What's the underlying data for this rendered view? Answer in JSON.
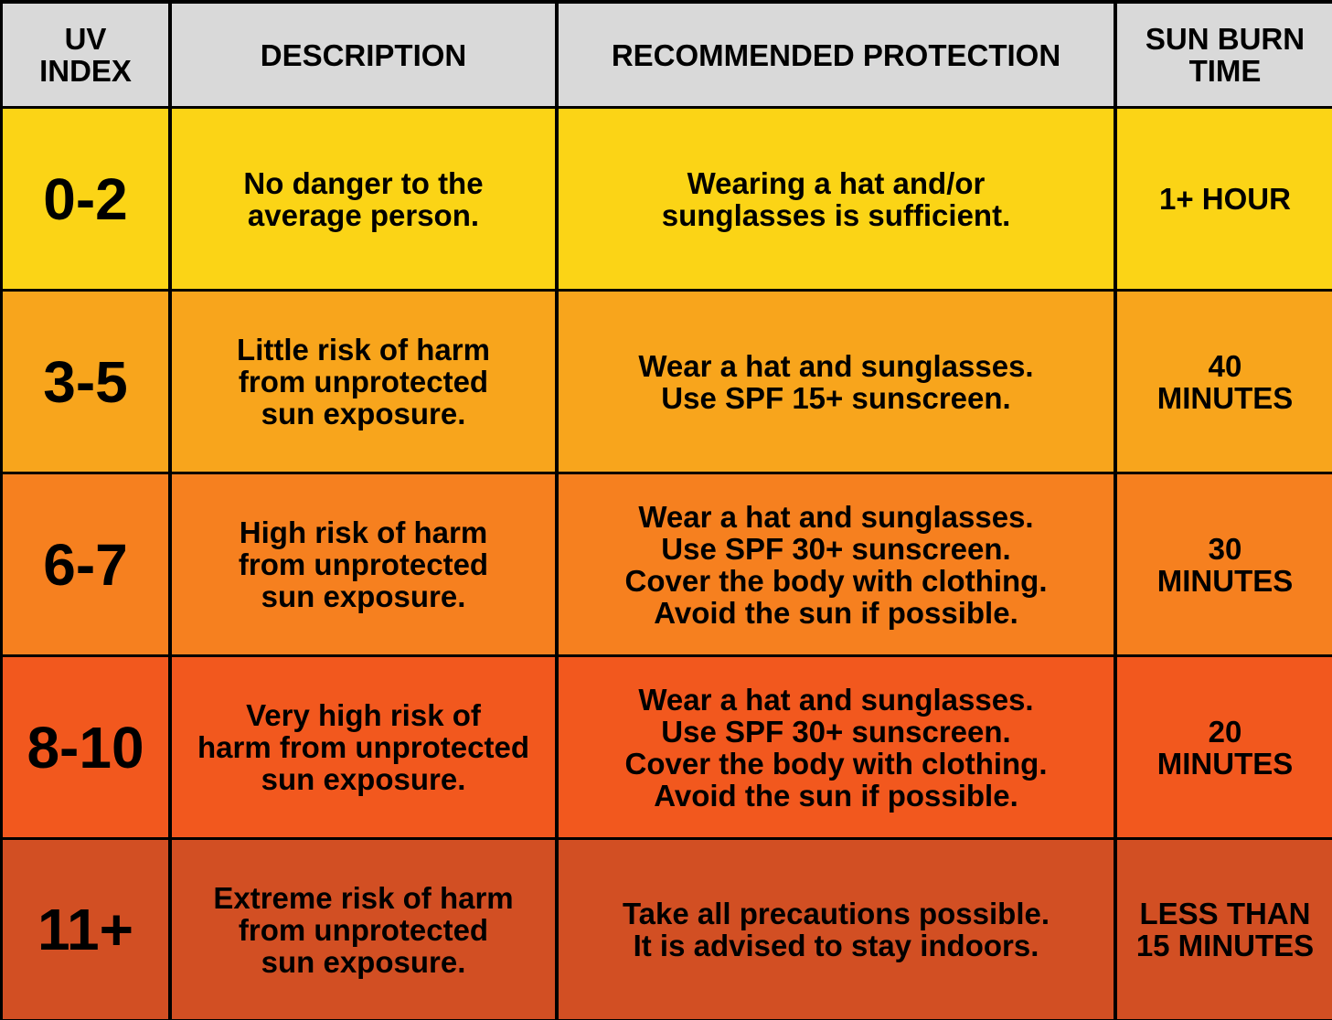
{
  "chart_data": {
    "type": "table",
    "columns": [
      "UV\nINDEX",
      "DESCRIPTION",
      "RECOMMENDED PROTECTION",
      "SUN BURN\nTIME"
    ],
    "rows": [
      {
        "uv_index": "0-2",
        "description": "No danger to the\naverage person.",
        "protection": "Wearing a hat and/or\nsunglasses is sufficient.",
        "burn_time": "1+ HOUR",
        "color": "#fbd416"
      },
      {
        "uv_index": "3-5",
        "description": "Little risk of harm\nfrom unprotected\nsun exposure.",
        "protection": "Wear a hat and sunglasses.\nUse SPF 15+ sunscreen.",
        "burn_time": "40\nMINUTES",
        "color": "#f8a51c"
      },
      {
        "uv_index": "6-7",
        "description": "High risk of harm\nfrom unprotected\nsun exposure.",
        "protection": "Wear a hat and sunglasses.\nUse SPF 30+ sunscreen.\nCover the body with clothing.\nAvoid the sun if possible.",
        "burn_time": "30\nMINUTES",
        "color": "#f6801f"
      },
      {
        "uv_index": "8-10",
        "description": "Very high risk of\nharm from unprotected\nsun exposure.",
        "protection": "Wear a hat and sunglasses.\nUse SPF 30+ sunscreen.\nCover the body with clothing.\nAvoid the sun if possible.",
        "burn_time": "20\nMINUTES",
        "color": "#f2581e"
      },
      {
        "uv_index": "11+",
        "description": "Extreme risk of harm\nfrom unprotected\nsun exposure.",
        "protection": "Take all precautions possible.\nIt is advised to stay indoors.",
        "burn_time": "LESS THAN\n15 MINUTES",
        "color": "#d24f23"
      }
    ],
    "header_color": "#d9d9d9",
    "border_color": "#000000"
  }
}
